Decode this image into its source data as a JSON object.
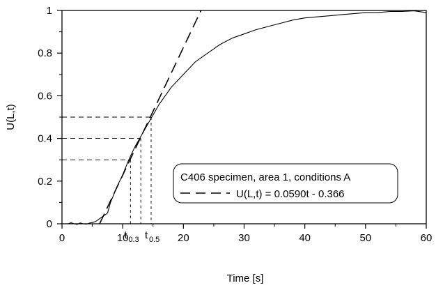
{
  "chart_data": {
    "type": "line",
    "xlabel": "Time [s]",
    "ylabel": "U(L,t)",
    "xlim": [
      0,
      60
    ],
    "ylim": [
      0,
      1
    ],
    "x_ticks": [
      0,
      10,
      20,
      30,
      40,
      50,
      60
    ],
    "y_ticks": [
      0,
      0.2,
      0.4,
      0.6,
      0.8,
      1
    ],
    "x_tick_labels": [
      "0",
      "10",
      "20",
      "30",
      "40",
      "50",
      "60"
    ],
    "y_tick_labels": [
      "0",
      "0.2",
      "0.4",
      "0.6",
      "0.8",
      "1"
    ],
    "grid": false,
    "legend_position": "lower-right",
    "legend_entries": [
      "C406 specimen, area 1, conditions A",
      "U(L,t) = 0.0590t - 0.366"
    ],
    "series": [
      {
        "style": "solid",
        "x": [
          0.5,
          1.0,
          1.5,
          2.0,
          2.5,
          3.0,
          3.5,
          4.0,
          4.5,
          5.0,
          5.5,
          6.0,
          6.5,
          7.0,
          7.5,
          8.0,
          9.0,
          10.0,
          11.0,
          12.0,
          13.0,
          14.0,
          15.0,
          16.0,
          17.0,
          18.0,
          19.0,
          20.0,
          21.0,
          22.0,
          23.0,
          24.0,
          25.0,
          26.0,
          27.0,
          28.0,
          29.0,
          30.0,
          32.0,
          34.0,
          36.0,
          38.0,
          40.0,
          42.0,
          44.0,
          46.0,
          48.0,
          50.0,
          52.0,
          54.0,
          56.0,
          58.0,
          60.0
        ],
        "y": [
          0.0,
          0.0,
          0.005,
          0.0,
          -0.003,
          0.004,
          0.0,
          -0.002,
          0.003,
          0.006,
          0.01,
          0.02,
          0.03,
          0.04,
          0.05,
          0.1,
          0.17,
          0.23,
          0.3,
          0.36,
          0.41,
          0.46,
          0.51,
          0.56,
          0.6,
          0.64,
          0.67,
          0.7,
          0.73,
          0.76,
          0.78,
          0.8,
          0.82,
          0.84,
          0.855,
          0.87,
          0.88,
          0.89,
          0.91,
          0.925,
          0.94,
          0.955,
          0.965,
          0.97,
          0.975,
          0.98,
          0.985,
          0.99,
          0.99,
          0.995,
          0.995,
          0.998,
          0.99
        ]
      },
      {
        "style": "dashed",
        "equation": "U(L,t) = 0.0590t - 0.366",
        "x": [
          6.2,
          22.9
        ],
        "y": [
          0.0,
          1.0
        ]
      }
    ],
    "annotations": [
      {
        "t_label": "t",
        "t_sub": "0.3",
        "x": 11.28,
        "y": 0.3
      },
      {
        "t_label": "t",
        "t_sub": "0.5",
        "x": 14.68,
        "y": 0.5
      }
    ],
    "reference_levels": [
      {
        "y": 0.3,
        "x": 11.28
      },
      {
        "y": 0.4,
        "x": 12.98
      },
      {
        "y": 0.5,
        "x": 14.68
      }
    ]
  }
}
